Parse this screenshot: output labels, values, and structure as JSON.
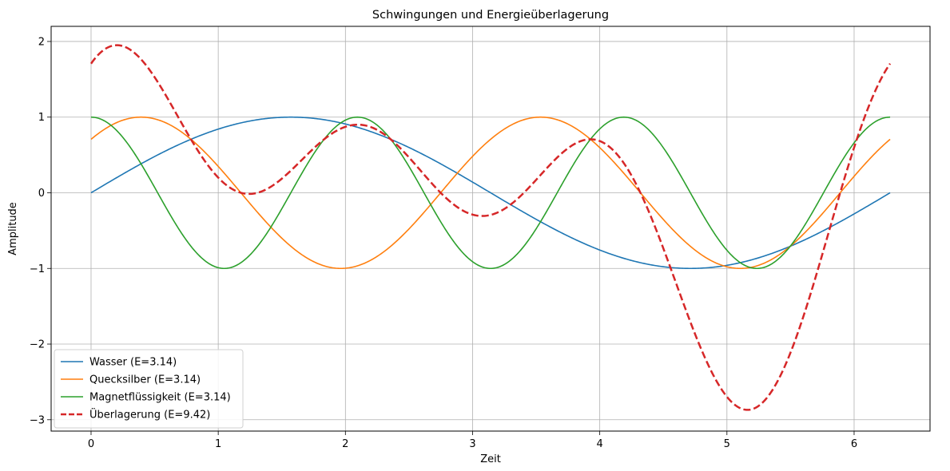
{
  "chart_data": {
    "type": "line",
    "title": "Schwingungen und Energieüberlagerung",
    "xlabel": "Zeit",
    "ylabel": "Amplitude",
    "xlim": [
      -0.314,
      6.597
    ],
    "ylim": [
      -3.15,
      2.2
    ],
    "xticks": [
      0,
      1,
      2,
      3,
      4,
      5,
      6
    ],
    "yticks": [
      -3,
      -2,
      -1,
      0,
      1,
      2
    ],
    "ytick_labels": [
      "−3",
      "−2",
      "−1",
      "0",
      "1",
      "2"
    ],
    "grid": true,
    "legend_position": "lower-left",
    "series": [
      {
        "name": "Wasser (E=3.14)",
        "color": "#1f77b4",
        "style": "solid",
        "function": "sin(t)",
        "x_range": [
          0,
          6.2832
        ]
      },
      {
        "name": "Quecksilber (E=3.14)",
        "color": "#ff7f0e",
        "style": "solid",
        "function": "sin(2t + pi/4)",
        "x_range": [
          0,
          6.2832
        ]
      },
      {
        "name": "Magnetflüssigkeit (E=3.14)",
        "color": "#2ca02c",
        "style": "solid",
        "function": "cos(3t)",
        "x_range": [
          0,
          6.2832
        ]
      },
      {
        "name": "Überlagerung (E=9.42)",
        "color": "#d62728",
        "style": "dashed",
        "function": "sin(t) + sin(2t + pi/4) + cos(3t)",
        "x_range": [
          0,
          6.2832
        ]
      }
    ]
  }
}
